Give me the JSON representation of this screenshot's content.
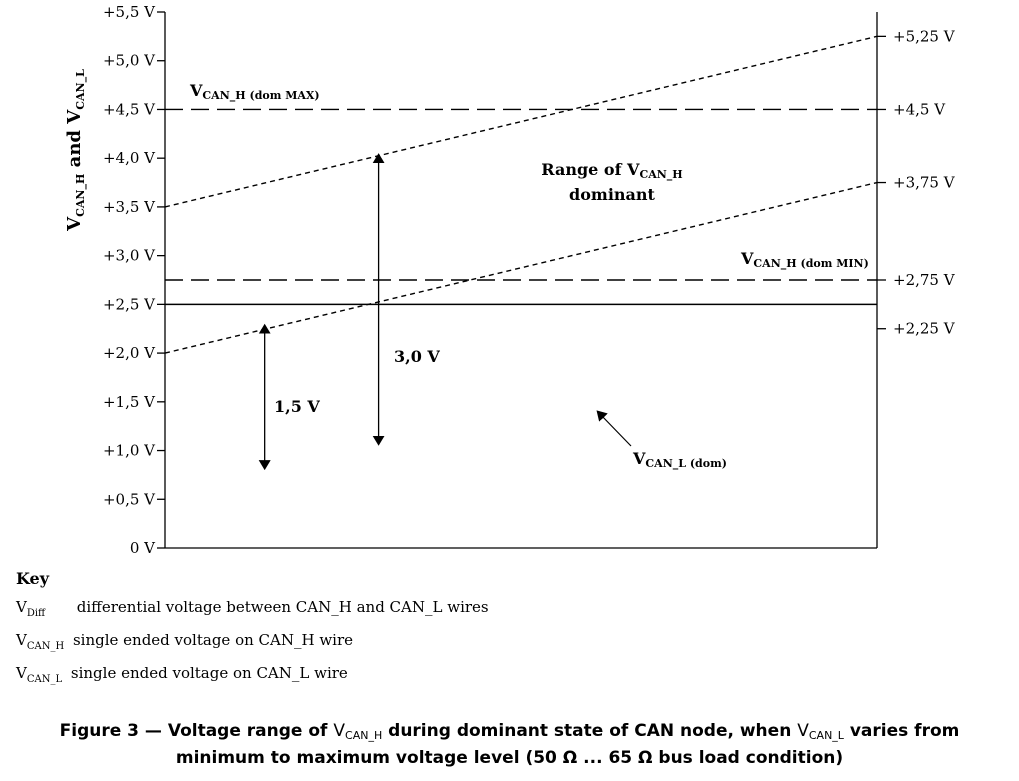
{
  "chart_data": {
    "type": "line",
    "ylabel": {
      "v1": "V",
      "s1": "CAN_H",
      "mid": " and V",
      "s2": "CAN_L"
    },
    "ylim": [
      0,
      5.5
    ],
    "yticks_left": [
      "0 V",
      "+0,5 V",
      "+1,0 V",
      "+1,5 V",
      "+2,0 V",
      "+2,5 V",
      "+3,0 V",
      "+3,5 V",
      "+4,0 V",
      "+4,5 V",
      "+5,0 V",
      "+5,5 V"
    ],
    "yticks_right": [
      {
        "value": 5.25,
        "label": "+5,25 V"
      },
      {
        "value": 4.5,
        "label": "+4,5 V"
      },
      {
        "value": 3.75,
        "label": "+3,75 V"
      },
      {
        "value": 2.75,
        "label": "+2,75 V"
      },
      {
        "value": 2.25,
        "label": "+2,25 V"
      }
    ],
    "series": [
      {
        "style": "dotted",
        "x": [
          0,
          1
        ],
        "y": [
          3.5,
          5.25
        ]
      },
      {
        "style": "dotted",
        "x": [
          0,
          1
        ],
        "y": [
          2.0,
          3.75
        ]
      },
      {
        "style": "dashed",
        "x": [
          0,
          1
        ],
        "y": [
          4.5,
          4.5
        ]
      },
      {
        "style": "dashed",
        "x": [
          0,
          1
        ],
        "y": [
          2.75,
          2.75
        ]
      },
      {
        "style": "solid",
        "x": [
          0,
          1
        ],
        "y": [
          2.5,
          2.5
        ]
      }
    ],
    "annotations": {
      "vmax": {
        "v": "V",
        "sub": "CAN_H (dom MAX)"
      },
      "vmin": {
        "v": "V",
        "sub": "CAN_H (dom MIN)"
      },
      "range_line1": "Range of  V",
      "range_sub": "CAN_H",
      "range_line2": "dominant",
      "v30": "3,0 V",
      "v15": "1,5 V",
      "vcanl": {
        "v": "V",
        "sub": "CAN_L (dom)"
      }
    },
    "arrows": [
      {
        "x": 0.3,
        "y_from": 1.1,
        "y_to": 4.0
      },
      {
        "x": 0.14,
        "y_from": 0.85,
        "y_to": 2.25
      }
    ]
  },
  "key": {
    "title": "Key",
    "items": [
      {
        "sym": "V",
        "sub": "Diff",
        "text": "differential voltage between CAN_H and CAN_L wires"
      },
      {
        "sym": "V",
        "sub": "CAN_H",
        "text": "single ended voltage on CAN_H wire"
      },
      {
        "sym": "V",
        "sub": "CAN_L",
        "text": "single ended voltage on CAN_L wire"
      }
    ]
  },
  "caption": {
    "p1": "Figure 3 — Voltage range of ",
    "v1": "V",
    "s1": "CAN_H",
    "p2": " during dominant state of CAN node, when ",
    "v2": "V",
    "s2": "CAN_L",
    "p3": " varies from",
    "line2": "minimum to maximum voltage level (50 Ω ... 65 Ω bus load condition)"
  }
}
